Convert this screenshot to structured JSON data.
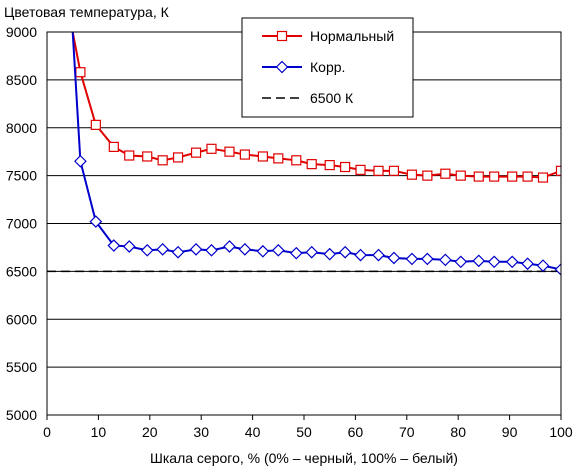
{
  "chart_data": {
    "type": "line",
    "title": "Цветовая температура, К",
    "xlabel": "Шкала серого, % (0% – черный, 100% – белый)",
    "ylabel": "",
    "xlim": [
      0,
      100
    ],
    "ylim": [
      5000,
      9000
    ],
    "xticks": [
      "0",
      "10",
      "20",
      "30",
      "40",
      "50",
      "60",
      "70",
      "80",
      "90",
      "100"
    ],
    "yticks": [
      "5000",
      "5500",
      "6000",
      "6500",
      "7000",
      "7500",
      "8000",
      "8500",
      "9000"
    ],
    "grid": "horizontal",
    "legend_position": "top-right",
    "series": [
      {
        "name": "Нормальный",
        "color": "#e00000",
        "marker": "square",
        "x": [
          5,
          6.5,
          9.5,
          13,
          16,
          19.5,
          22.5,
          25.5,
          29,
          32,
          35.5,
          38.5,
          42,
          45,
          48.5,
          51.5,
          55,
          58,
          61,
          64.5,
          67.5,
          71,
          74,
          77.5,
          80.5,
          84,
          87,
          90.5,
          93.5,
          96.5,
          100
        ],
        "y": [
          9000,
          8580,
          8030,
          7800,
          7710,
          7700,
          7660,
          7690,
          7740,
          7780,
          7750,
          7720,
          7700,
          7680,
          7660,
          7620,
          7610,
          7590,
          7560,
          7550,
          7550,
          7510,
          7500,
          7520,
          7500,
          7490,
          7490,
          7490,
          7490,
          7480,
          7550
        ]
      },
      {
        "name": "Корр.",
        "color": "#0000cc",
        "marker": "diamond",
        "x": [
          5,
          6.5,
          9.5,
          13,
          16,
          19.5,
          22.5,
          25.5,
          29,
          32,
          35.5,
          38.5,
          42,
          45,
          48.5,
          51.5,
          55,
          58,
          61,
          64.5,
          67.5,
          71,
          74,
          77.5,
          80.5,
          84,
          87,
          90.5,
          93.5,
          96.5,
          100
        ],
        "y": [
          9000,
          7650,
          7020,
          6770,
          6760,
          6720,
          6730,
          6700,
          6730,
          6720,
          6760,
          6730,
          6710,
          6720,
          6690,
          6700,
          6680,
          6700,
          6670,
          6670,
          6640,
          6630,
          6630,
          6620,
          6600,
          6610,
          6600,
          6600,
          6580,
          6560,
          6520
        ]
      },
      {
        "name": "6500 К",
        "color": "#000000",
        "dash": "dashed",
        "x": [
          0,
          100
        ],
        "y": [
          6500,
          6500
        ]
      }
    ]
  }
}
